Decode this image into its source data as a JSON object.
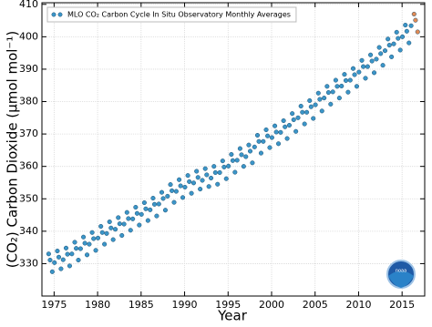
{
  "chart_data": {
    "type": "scatter",
    "x_label": "Year",
    "y_label": "(CO₂) Carbon Dioxide (μmol mol⁻¹)",
    "logo_text": "noaa",
    "xlim": [
      1973.6,
      2017.6
    ],
    "ylim": [
      320,
      410.5
    ],
    "xticks": [
      1975,
      1980,
      1985,
      1990,
      1995,
      2000,
      2005,
      2010,
      2015
    ],
    "yticks": [
      330,
      340,
      350,
      360,
      370,
      380,
      390,
      400,
      410
    ],
    "grid": true,
    "legend": "upper left",
    "series": [
      {
        "name": "MLO CO₂ Carbon Cycle In Situ Observatory Monthly Averages",
        "color": "#3b95c8",
        "x": [
          1974.375,
          1974.54,
          1974.79,
          1975.04,
          1975.375,
          1975.54,
          1975.79,
          1976.04,
          1976.375,
          1976.54,
          1976.79,
          1977.04,
          1977.375,
          1977.54,
          1977.79,
          1978.04,
          1978.375,
          1978.54,
          1978.79,
          1979.04,
          1979.375,
          1979.54,
          1979.79,
          1980.04,
          1980.375,
          1980.54,
          1980.79,
          1981.04,
          1981.375,
          1981.54,
          1981.79,
          1982.04,
          1982.375,
          1982.54,
          1982.79,
          1983.04,
          1983.375,
          1983.54,
          1983.79,
          1984.04,
          1984.375,
          1984.54,
          1984.79,
          1985.04,
          1985.375,
          1985.54,
          1985.79,
          1986.04,
          1986.375,
          1986.54,
          1986.79,
          1987.04,
          1987.375,
          1987.54,
          1987.79,
          1988.04,
          1988.375,
          1988.54,
          1988.79,
          1989.04,
          1989.375,
          1989.54,
          1989.79,
          1990.04,
          1990.375,
          1990.54,
          1990.79,
          1991.04,
          1991.375,
          1991.54,
          1991.79,
          1992.04,
          1992.375,
          1992.54,
          1992.79,
          1993.04,
          1993.375,
          1993.54,
          1993.79,
          1994.04,
          1994.375,
          1994.54,
          1994.79,
          1995.04,
          1995.375,
          1995.54,
          1995.79,
          1996.04,
          1996.375,
          1996.54,
          1996.79,
          1997.04,
          1997.375,
          1997.54,
          1997.79,
          1998.04,
          1998.375,
          1998.54,
          1998.79,
          1999.04,
          1999.375,
          1999.54,
          1999.79,
          2000.04,
          2000.375,
          2000.54,
          2000.79,
          2001.04,
          2001.375,
          2001.54,
          2001.79,
          2002.04,
          2002.375,
          2002.54,
          2002.79,
          2003.04,
          2003.375,
          2003.54,
          2003.79,
          2004.04,
          2004.375,
          2004.54,
          2004.79,
          2005.04,
          2005.375,
          2005.54,
          2005.79,
          2006.04,
          2006.375,
          2006.54,
          2006.79,
          2007.04,
          2007.375,
          2007.54,
          2007.79,
          2008.04,
          2008.375,
          2008.54,
          2008.79,
          2009.04,
          2009.375,
          2009.54,
          2009.79,
          2010.04,
          2010.375,
          2010.54,
          2010.79,
          2011.04,
          2011.375,
          2011.54,
          2011.79,
          2012.04,
          2012.375,
          2012.54,
          2012.79,
          2013.04,
          2013.375,
          2013.54,
          2013.79,
          2014.04,
          2014.375,
          2014.54,
          2014.79,
          2015.04,
          2015.375,
          2015.54,
          2015.79,
          2016.04
        ],
        "values": [
          333.0,
          331.1,
          327.5,
          330.3,
          333.9,
          332.0,
          328.4,
          331.2,
          334.8,
          332.9,
          329.3,
          333.0,
          336.6,
          334.7,
          331.1,
          334.6,
          338.2,
          336.3,
          332.7,
          336.0,
          339.6,
          337.7,
          334.1,
          337.9,
          341.5,
          339.6,
          336.0,
          339.3,
          342.9,
          341.0,
          337.4,
          340.6,
          344.2,
          342.3,
          338.7,
          342.2,
          345.8,
          343.9,
          340.3,
          343.8,
          347.4,
          345.5,
          341.9,
          345.2,
          348.8,
          346.9,
          343.3,
          346.6,
          350.2,
          348.3,
          344.7,
          348.4,
          352.0,
          350.1,
          346.5,
          350.8,
          354.4,
          352.5,
          348.9,
          352.3,
          355.9,
          354.0,
          350.4,
          353.6,
          357.2,
          355.3,
          351.7,
          354.9,
          358.5,
          356.6,
          353.0,
          355.7,
          359.3,
          357.4,
          353.8,
          356.4,
          360.0,
          358.1,
          354.5,
          358.1,
          361.7,
          359.8,
          356.2,
          360.1,
          363.7,
          361.8,
          358.2,
          361.9,
          365.5,
          363.6,
          360.0,
          363.0,
          366.6,
          364.7,
          361.1,
          366.0,
          369.6,
          367.7,
          364.1,
          367.7,
          371.3,
          369.4,
          365.8,
          368.9,
          372.5,
          370.6,
          367.0,
          370.5,
          374.1,
          372.2,
          368.6,
          372.7,
          376.3,
          374.4,
          370.8,
          375.0,
          378.6,
          376.7,
          373.1,
          376.7,
          380.3,
          378.4,
          374.8,
          379.0,
          382.6,
          380.7,
          377.1,
          381.1,
          384.7,
          382.8,
          379.2,
          383.0,
          386.6,
          384.7,
          381.1,
          384.8,
          388.4,
          386.5,
          382.9,
          386.6,
          390.2,
          388.3,
          384.7,
          389.1,
          392.7,
          390.8,
          387.2,
          390.8,
          394.4,
          392.5,
          388.9,
          393.1,
          396.7,
          394.8,
          391.2,
          395.7,
          399.3,
          397.4,
          393.8,
          397.8,
          401.4,
          399.5,
          395.9,
          400.0,
          403.6,
          401.7,
          398.1,
          403.4
        ]
      },
      {
        "color": "#e08a55",
        "x": [
          2016.375,
          2016.54,
          2016.79
        ],
        "values": [
          407.0,
          405.1,
          401.5
        ]
      }
    ]
  }
}
